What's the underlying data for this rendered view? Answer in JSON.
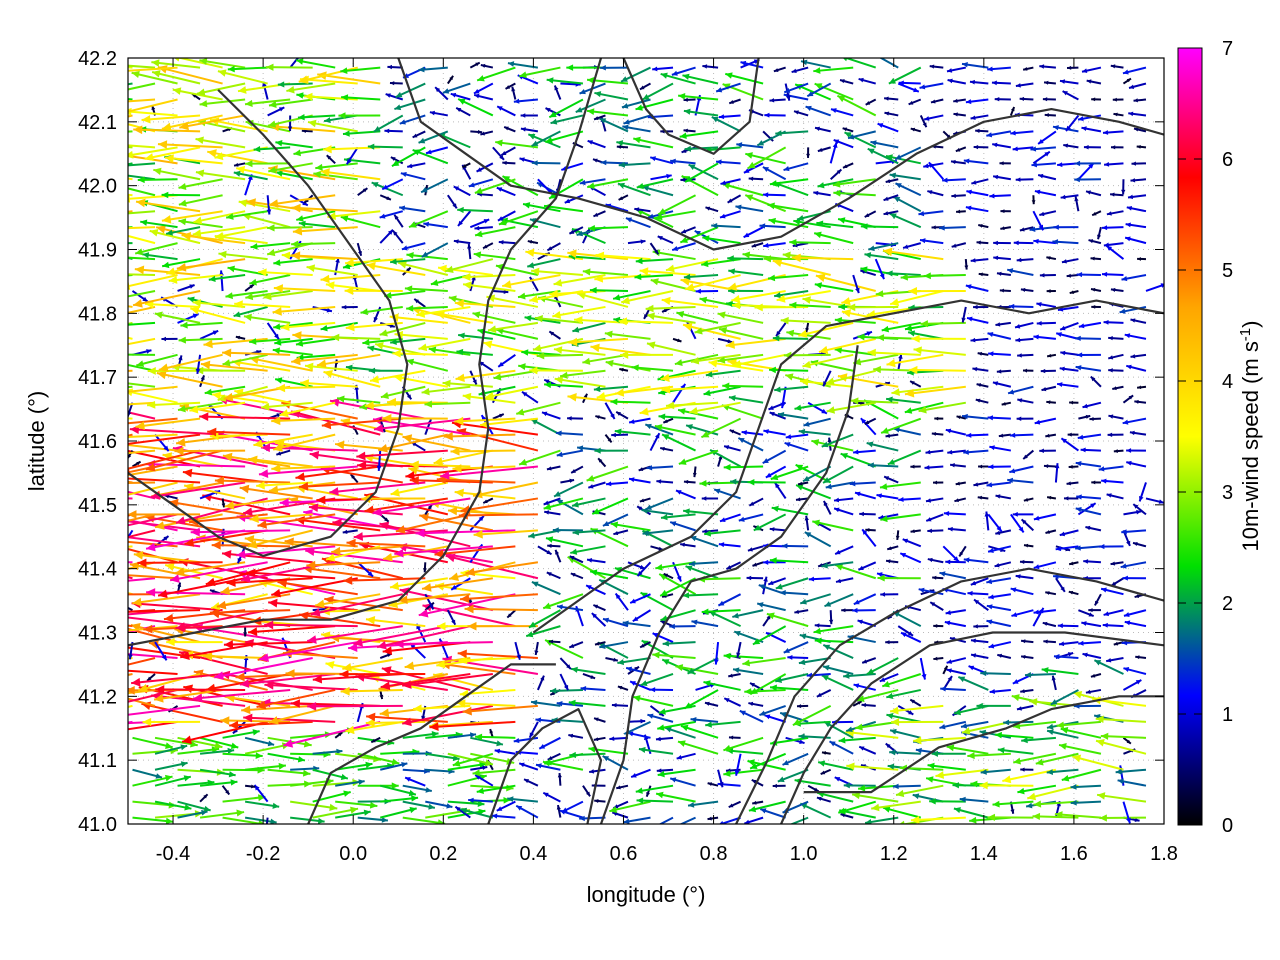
{
  "chart_data": {
    "type": "vector-field",
    "xlabel": "longitude (°)",
    "ylabel": "latitude (°)",
    "xlim": [
      -0.5,
      1.8
    ],
    "ylim": [
      41.0,
      42.2
    ],
    "xticks": [
      -0.4,
      -0.2,
      0.0,
      0.2,
      0.4,
      0.6,
      0.8,
      1.0,
      1.2,
      1.4,
      1.6,
      1.8
    ],
    "yticks": [
      41.0,
      41.1,
      41.2,
      41.3,
      41.4,
      41.5,
      41.6,
      41.7,
      41.8,
      41.9,
      42.0,
      42.1,
      42.2
    ],
    "xtick_labels": [
      "-0.4",
      "-0.2",
      "0.0",
      "0.2",
      "0.4",
      "0.6",
      "0.8",
      "1.0",
      "1.2",
      "1.4",
      "1.6",
      "1.8"
    ],
    "ytick_labels": [
      "41.0",
      "41.1",
      "41.2",
      "41.3",
      "41.4",
      "41.5",
      "41.6",
      "41.7",
      "41.8",
      "41.9",
      "42.0",
      "42.1",
      "42.2"
    ],
    "grid": true,
    "colorbar": {
      "label_main": "10m-wind speed (m s",
      "label_sup": "-1",
      "label_end": ")",
      "min": 0,
      "max": 7,
      "ticks": [
        0,
        1,
        2,
        3,
        4,
        5,
        6,
        7
      ],
      "tick_labels": [
        "0",
        "1",
        "2",
        "3",
        "4",
        "5",
        "6",
        "7"
      ],
      "colors": [
        "#000000",
        "#0000ff",
        "#00e000",
        "#ffff00",
        "#ffa500",
        "#ff0000",
        "#ff00ff"
      ]
    },
    "vector_regions": [
      {
        "name": "inland-west-strong",
        "lon": [
          -0.5,
          0.45
        ],
        "lat": [
          41.15,
          41.65
        ],
        "speed": [
          3.5,
          6.8
        ],
        "dir_deg": 180
      },
      {
        "name": "northwest-moderate",
        "lon": [
          -0.5,
          0.1
        ],
        "lat": [
          41.65,
          42.2
        ],
        "speed": [
          2.0,
          4.5
        ],
        "dir_deg": 180
      },
      {
        "name": "central-band",
        "lon": [
          0.1,
          1.4
        ],
        "lat": [
          41.65,
          41.9
        ],
        "speed": [
          2.0,
          4.0
        ],
        "dir_deg": 180
      },
      {
        "name": "southwest-mixed",
        "lon": [
          -0.5,
          0.3
        ],
        "lat": [
          41.0,
          41.25
        ],
        "speed": [
          1.5,
          3.0
        ],
        "dir_deg": 0
      },
      {
        "name": "coast-south-east",
        "lon": [
          1.2,
          1.8
        ],
        "lat": [
          41.0,
          41.2
        ],
        "speed": [
          1.5,
          3.5
        ],
        "dir_deg": 180
      },
      {
        "name": "east-calm",
        "lon": [
          1.3,
          1.8
        ],
        "lat": [
          41.25,
          42.2
        ],
        "speed": [
          0.2,
          1.5
        ],
        "dir_deg": 180
      }
    ],
    "contours": [
      {
        "name": "contour-coast",
        "points": [
          [
            0.85,
            41.0
          ],
          [
            0.92,
            41.1
          ],
          [
            0.98,
            41.2
          ],
          [
            1.08,
            41.28
          ],
          [
            1.2,
            41.33
          ],
          [
            1.35,
            41.38
          ],
          [
            1.5,
            41.4
          ],
          [
            1.65,
            41.38
          ],
          [
            1.8,
            41.35
          ]
        ]
      },
      {
        "name": "contour-coast-inner",
        "points": [
          [
            0.95,
            41.0
          ],
          [
            1.0,
            41.08
          ],
          [
            1.06,
            41.15
          ],
          [
            1.15,
            41.22
          ],
          [
            1.28,
            41.28
          ],
          [
            1.42,
            41.3
          ],
          [
            1.58,
            41.3
          ],
          [
            1.8,
            41.28
          ]
        ]
      },
      {
        "name": "contour-sea",
        "points": [
          [
            1.0,
            41.05
          ],
          [
            1.15,
            41.05
          ],
          [
            1.3,
            41.12
          ],
          [
            1.45,
            41.15
          ],
          [
            1.55,
            41.18
          ],
          [
            1.7,
            41.2
          ],
          [
            1.8,
            41.2
          ]
        ]
      },
      {
        "name": "contour-west-1",
        "points": [
          [
            -0.5,
            41.55
          ],
          [
            -0.4,
            41.5
          ],
          [
            -0.3,
            41.45
          ],
          [
            -0.2,
            41.42
          ],
          [
            -0.05,
            41.45
          ],
          [
            0.05,
            41.52
          ],
          [
            0.1,
            41.62
          ],
          [
            0.12,
            41.72
          ],
          [
            0.08,
            41.82
          ],
          [
            0.0,
            41.9
          ],
          [
            -0.1,
            42.0
          ],
          [
            -0.2,
            42.08
          ],
          [
            -0.3,
            42.15
          ]
        ]
      },
      {
        "name": "contour-west-2",
        "points": [
          [
            -0.5,
            41.28
          ],
          [
            -0.35,
            41.3
          ],
          [
            -0.2,
            41.32
          ],
          [
            -0.05,
            41.32
          ],
          [
            0.1,
            41.35
          ],
          [
            0.2,
            41.42
          ],
          [
            0.28,
            41.52
          ],
          [
            0.3,
            41.62
          ],
          [
            0.28,
            41.72
          ],
          [
            0.3,
            41.82
          ],
          [
            0.35,
            41.9
          ],
          [
            0.45,
            41.98
          ],
          [
            0.5,
            42.08
          ],
          [
            0.55,
            42.2
          ]
        ]
      },
      {
        "name": "contour-central-1",
        "points": [
          [
            0.4,
            41.3
          ],
          [
            0.5,
            41.35
          ],
          [
            0.6,
            41.4
          ],
          [
            0.75,
            41.45
          ],
          [
            0.85,
            41.52
          ],
          [
            0.9,
            41.62
          ],
          [
            0.95,
            41.72
          ],
          [
            1.05,
            41.78
          ],
          [
            1.2,
            41.8
          ],
          [
            1.35,
            41.82
          ],
          [
            1.5,
            41.8
          ],
          [
            1.65,
            41.82
          ],
          [
            1.8,
            41.8
          ]
        ]
      },
      {
        "name": "contour-central-2",
        "points": [
          [
            0.55,
            41.0
          ],
          [
            0.6,
            41.1
          ],
          [
            0.62,
            41.2
          ],
          [
            0.68,
            41.3
          ],
          [
            0.75,
            41.38
          ],
          [
            0.85,
            41.4
          ],
          [
            0.95,
            41.45
          ],
          [
            1.05,
            41.55
          ],
          [
            1.1,
            41.65
          ],
          [
            1.12,
            41.75
          ]
        ]
      },
      {
        "name": "contour-north-1",
        "points": [
          [
            0.1,
            42.2
          ],
          [
            0.15,
            42.1
          ],
          [
            0.25,
            42.05
          ],
          [
            0.35,
            42.0
          ],
          [
            0.5,
            41.98
          ],
          [
            0.65,
            41.95
          ],
          [
            0.8,
            41.9
          ],
          [
            0.95,
            41.92
          ],
          [
            1.1,
            41.98
          ],
          [
            1.25,
            42.05
          ],
          [
            1.4,
            42.1
          ],
          [
            1.55,
            42.12
          ],
          [
            1.7,
            42.1
          ],
          [
            1.8,
            42.08
          ]
        ]
      },
      {
        "name": "contour-north-2",
        "points": [
          [
            0.6,
            42.2
          ],
          [
            0.65,
            42.12
          ],
          [
            0.7,
            42.08
          ],
          [
            0.8,
            42.05
          ],
          [
            0.88,
            42.1
          ],
          [
            0.9,
            42.2
          ]
        ]
      },
      {
        "name": "contour-south-1",
        "points": [
          [
            0.3,
            41.0
          ],
          [
            0.35,
            41.1
          ],
          [
            0.42,
            41.15
          ],
          [
            0.5,
            41.18
          ],
          [
            0.55,
            41.1
          ],
          [
            0.52,
            41.0
          ]
        ]
      },
      {
        "name": "contour-south-2",
        "points": [
          [
            -0.1,
            41.0
          ],
          [
            -0.05,
            41.08
          ],
          [
            0.05,
            41.12
          ],
          [
            0.15,
            41.15
          ],
          [
            0.25,
            41.2
          ],
          [
            0.35,
            41.25
          ],
          [
            0.45,
            41.25
          ]
        ]
      }
    ]
  }
}
